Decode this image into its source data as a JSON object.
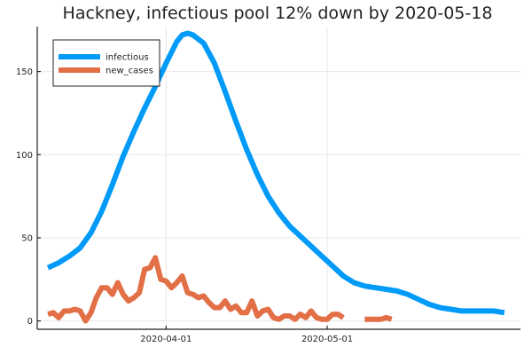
{
  "chart_data": {
    "type": "line",
    "title": "Hackney, infectious pool 12% down by 2020-05-18",
    "xlabel": "",
    "ylabel": "",
    "x_start": "2020-03-08",
    "x_tick_labels": [
      {
        "date": "2020-04-01",
        "label": "2020-04-01"
      },
      {
        "date": "2020-05-01",
        "label": "2020-05-01"
      }
    ],
    "y_ticks": [
      0,
      50,
      100,
      150
    ],
    "ylim": [
      -5,
      177
    ],
    "grid": true,
    "legend_position": "top-left",
    "series": [
      {
        "name": "infectious",
        "color": "#009AF9",
        "points": [
          [
            "2020-03-10",
            32
          ],
          [
            "2020-03-12",
            35
          ],
          [
            "2020-03-14",
            39
          ],
          [
            "2020-03-16",
            44
          ],
          [
            "2020-03-18",
            53
          ],
          [
            "2020-03-20",
            66
          ],
          [
            "2020-03-22",
            82
          ],
          [
            "2020-03-24",
            99
          ],
          [
            "2020-03-26",
            114
          ],
          [
            "2020-03-28",
            128
          ],
          [
            "2020-03-30",
            141
          ],
          [
            "2020-04-01",
            155
          ],
          [
            "2020-04-03",
            168
          ],
          [
            "2020-04-04",
            172
          ],
          [
            "2020-04-05",
            173
          ],
          [
            "2020-04-06",
            172
          ],
          [
            "2020-04-08",
            167
          ],
          [
            "2020-04-10",
            155
          ],
          [
            "2020-04-12",
            138
          ],
          [
            "2020-04-14",
            120
          ],
          [
            "2020-04-16",
            103
          ],
          [
            "2020-04-18",
            88
          ],
          [
            "2020-04-20",
            75
          ],
          [
            "2020-04-22",
            65
          ],
          [
            "2020-04-24",
            57
          ],
          [
            "2020-04-26",
            51
          ],
          [
            "2020-04-28",
            45
          ],
          [
            "2020-04-30",
            39
          ],
          [
            "2020-05-02",
            33
          ],
          [
            "2020-05-04",
            27
          ],
          [
            "2020-05-06",
            23
          ],
          [
            "2020-05-08",
            21
          ],
          [
            "2020-05-10",
            20
          ],
          [
            "2020-05-12",
            19
          ],
          [
            "2020-05-14",
            18
          ],
          [
            "2020-05-16",
            16
          ],
          [
            "2020-05-18",
            13
          ],
          [
            "2020-05-20",
            10
          ],
          [
            "2020-05-22",
            8
          ],
          [
            "2020-05-24",
            7
          ],
          [
            "2020-05-26",
            6
          ],
          [
            "2020-05-28",
            6
          ],
          [
            "2020-05-30",
            6
          ],
          [
            "2020-06-01",
            6
          ],
          [
            "2020-06-03",
            5
          ]
        ]
      },
      {
        "name": "new_cases",
        "color": "#E26F46",
        "segments": [
          [
            [
              "2020-03-10",
              4
            ],
            [
              "2020-03-11",
              5
            ],
            [
              "2020-03-12",
              2
            ],
            [
              "2020-03-13",
              6
            ],
            [
              "2020-03-14",
              6
            ],
            [
              "2020-03-15",
              7
            ],
            [
              "2020-03-16",
              6
            ],
            [
              "2020-03-17",
              0
            ],
            [
              "2020-03-18",
              5
            ],
            [
              "2020-03-19",
              14
            ],
            [
              "2020-03-20",
              20
            ],
            [
              "2020-03-21",
              20
            ],
            [
              "2020-03-22",
              16
            ],
            [
              "2020-03-23",
              23
            ],
            [
              "2020-03-24",
              16
            ],
            [
              "2020-03-25",
              12
            ],
            [
              "2020-03-26",
              14
            ],
            [
              "2020-03-27",
              17
            ],
            [
              "2020-03-28",
              31
            ],
            [
              "2020-03-29",
              32
            ],
            [
              "2020-03-30",
              38
            ],
            [
              "2020-03-31",
              25
            ],
            [
              "2020-04-01",
              24
            ],
            [
              "2020-04-02",
              20
            ],
            [
              "2020-04-03",
              23
            ],
            [
              "2020-04-04",
              27
            ],
            [
              "2020-04-05",
              17
            ],
            [
              "2020-04-06",
              16
            ],
            [
              "2020-04-07",
              14
            ],
            [
              "2020-04-08",
              15
            ],
            [
              "2020-04-09",
              11
            ],
            [
              "2020-04-10",
              8
            ],
            [
              "2020-04-11",
              8
            ],
            [
              "2020-04-12",
              12
            ],
            [
              "2020-04-13",
              7
            ],
            [
              "2020-04-14",
              9
            ],
            [
              "2020-04-15",
              5
            ],
            [
              "2020-04-16",
              5
            ],
            [
              "2020-04-17",
              12
            ],
            [
              "2020-04-18",
              3
            ],
            [
              "2020-04-19",
              6
            ],
            [
              "2020-04-20",
              7
            ],
            [
              "2020-04-21",
              2
            ],
            [
              "2020-04-22",
              1
            ],
            [
              "2020-04-23",
              3
            ],
            [
              "2020-04-24",
              3
            ],
            [
              "2020-04-25",
              1
            ],
            [
              "2020-04-26",
              4
            ],
            [
              "2020-04-27",
              2
            ],
            [
              "2020-04-28",
              6
            ],
            [
              "2020-04-29",
              2
            ],
            [
              "2020-04-30",
              1
            ],
            [
              "2020-05-01",
              1
            ],
            [
              "2020-05-02",
              4
            ],
            [
              "2020-05-03",
              4
            ],
            [
              "2020-05-04",
              2
            ]
          ],
          [
            [
              "2020-05-08",
              1
            ],
            [
              "2020-05-09",
              1
            ],
            [
              "2020-05-10",
              1
            ],
            [
              "2020-05-11",
              1
            ],
            [
              "2020-05-12",
              2
            ],
            [
              "2020-05-13",
              1
            ]
          ]
        ]
      }
    ]
  }
}
